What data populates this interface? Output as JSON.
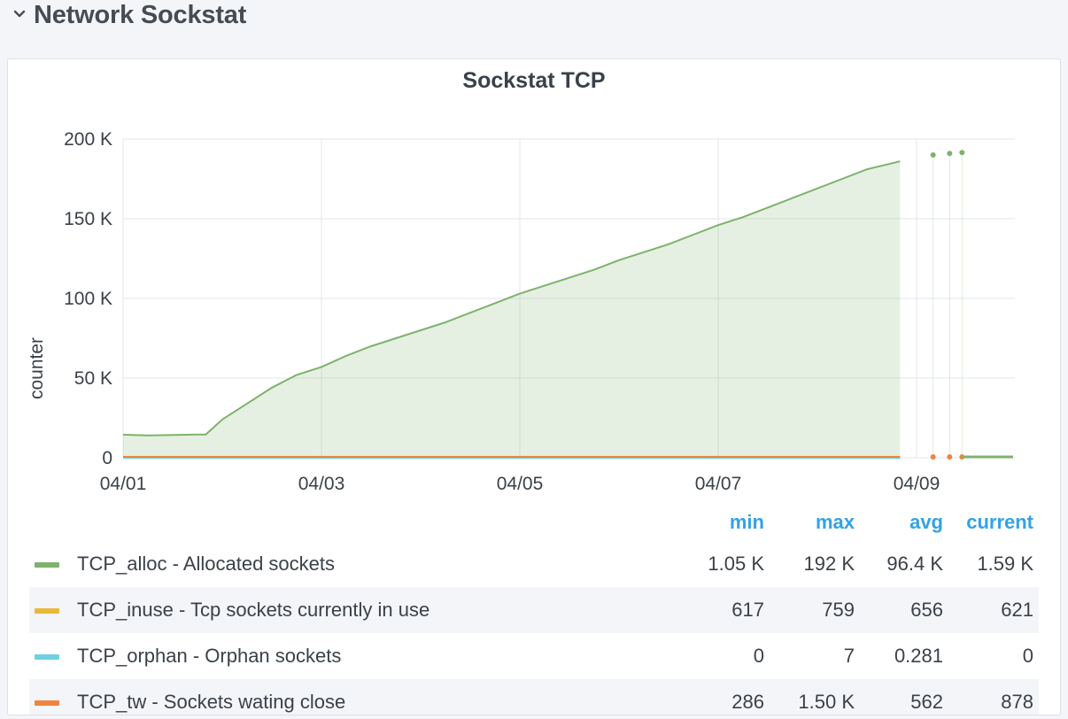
{
  "row": {
    "title": "Network Sockstat",
    "collapse_icon": "chevron-down-icon"
  },
  "panel": {
    "title": "Sockstat TCP"
  },
  "chart_data": {
    "type": "area",
    "title": "Sockstat TCP",
    "ylabel": "counter",
    "xlabel": "",
    "ylim": [
      0,
      200000
    ],
    "yticks": [
      "0",
      "50 K",
      "100 K",
      "150 K",
      "200 K"
    ],
    "xticks": [
      "04/01",
      "04/03",
      "04/05",
      "04/07",
      "04/09"
    ],
    "grid": true,
    "series": [
      {
        "name": "TCP_alloc - Allocated sockets",
        "color": "#7eb26d",
        "fill": true,
        "points": [
          [
            "04/01 00:00",
            14500
          ],
          [
            "04/01 06:00",
            14000
          ],
          [
            "04/01 12:00",
            14300
          ],
          [
            "04/01 18:00",
            14600
          ],
          [
            "04/01 20:00",
            14600
          ],
          [
            "04/02 00:00",
            24000
          ],
          [
            "04/02 06:00",
            34000
          ],
          [
            "04/02 12:00",
            44000
          ],
          [
            "04/02 18:00",
            52000
          ],
          [
            "04/03 00:00",
            57000
          ],
          [
            "04/03 06:00",
            64000
          ],
          [
            "04/03 12:00",
            70000
          ],
          [
            "04/03 18:00",
            75000
          ],
          [
            "04/04 00:00",
            80000
          ],
          [
            "04/04 06:00",
            85000
          ],
          [
            "04/04 12:00",
            91000
          ],
          [
            "04/04 18:00",
            97000
          ],
          [
            "04/05 00:00",
            103000
          ],
          [
            "04/05 06:00",
            108000
          ],
          [
            "04/05 12:00",
            113000
          ],
          [
            "04/05 18:00",
            118000
          ],
          [
            "04/06 00:00",
            124000
          ],
          [
            "04/06 06:00",
            129000
          ],
          [
            "04/06 12:00",
            134000
          ],
          [
            "04/06 18:00",
            140000
          ],
          [
            "04/07 00:00",
            146000
          ],
          [
            "04/07 06:00",
            151000
          ],
          [
            "04/07 12:00",
            157000
          ],
          [
            "04/07 18:00",
            163000
          ],
          [
            "04/08 00:00",
            169000
          ],
          [
            "04/08 06:00",
            175000
          ],
          [
            "04/08 12:00",
            181000
          ],
          [
            "04/08 20:00",
            186000
          ]
        ],
        "late_points": [
          [
            "04/09 04:00",
            190000
          ],
          [
            "04/09 08:00",
            191000
          ],
          [
            "04/09 11:00",
            191500
          ]
        ]
      },
      {
        "name": "TCP_inuse - Tcp sockets currently in use",
        "color": "#eab839",
        "fill": false,
        "points": [
          [
            "04/01 00:00",
            650
          ],
          [
            "04/08 20:00",
            650
          ]
        ]
      },
      {
        "name": "TCP_orphan - Orphan sockets",
        "color": "#6ed0e0",
        "fill": false,
        "points": [
          [
            "04/01 00:00",
            0
          ],
          [
            "04/08 20:00",
            0
          ]
        ]
      },
      {
        "name": "TCP_tw - Sockets wating close",
        "color": "#ef843c",
        "fill": false,
        "points": [
          [
            "04/01 00:00",
            560
          ],
          [
            "04/08 20:00",
            560
          ]
        ]
      }
    ]
  },
  "legend": {
    "headers": {
      "min": "min",
      "max": "max",
      "avg": "avg",
      "current": "current"
    },
    "rows": [
      {
        "label": "TCP_alloc - Allocated sockets",
        "color": "#7eb26d",
        "min": "1.05 K",
        "max": "192 K",
        "avg": "96.4 K",
        "current": "1.59 K"
      },
      {
        "label": "TCP_inuse - Tcp sockets currently in use",
        "color": "#eab839",
        "min": "617",
        "max": "759",
        "avg": "656",
        "current": "621"
      },
      {
        "label": "TCP_orphan - Orphan sockets",
        "color": "#6ed0e0",
        "min": "0",
        "max": "7",
        "avg": "0.281",
        "current": "0"
      },
      {
        "label": "TCP_tw - Sockets wating close",
        "color": "#ef843c",
        "min": "286",
        "max": "1.50 K",
        "avg": "562",
        "current": "878"
      }
    ]
  }
}
